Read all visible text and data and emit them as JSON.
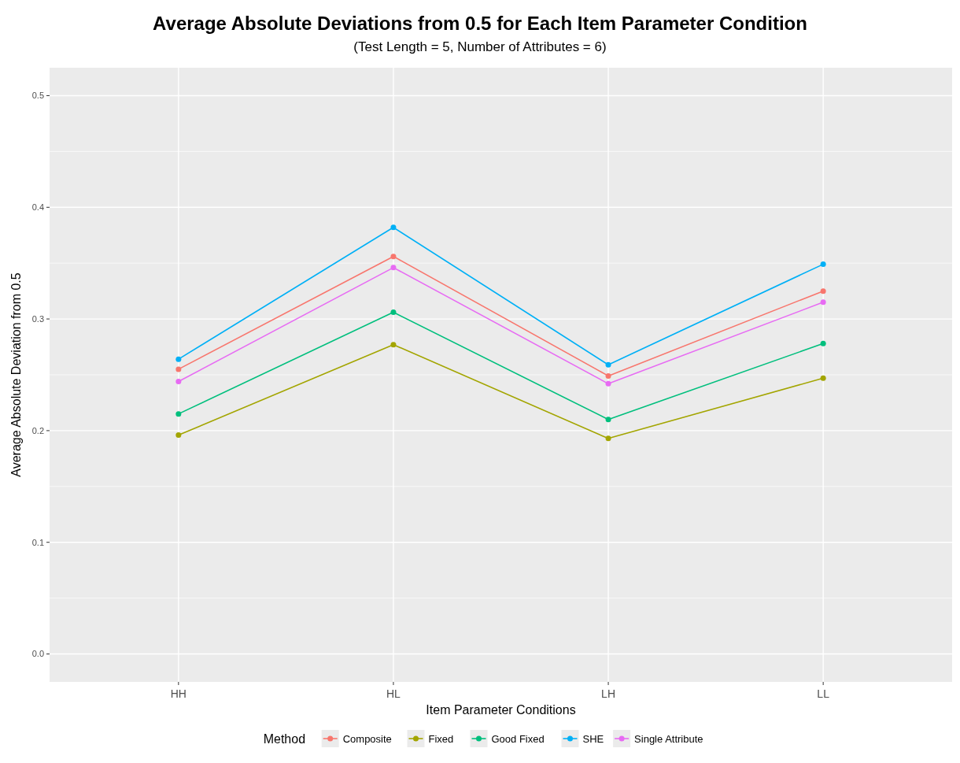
{
  "chart_data": {
    "type": "line",
    "title": "Average Absolute Deviations from 0.5 for Each Item Parameter Condition",
    "subtitle": "(Test Length = 5, Number of Attributes = 6)",
    "xlabel": "Item Parameter Conditions",
    "ylabel": "Average Absolute Deviation from 0.5",
    "legend_title": "Method",
    "categories": [
      "HH",
      "HL",
      "LH",
      "LL"
    ],
    "series": [
      {
        "name": "Composite",
        "color": "#f8766d",
        "values": [
          0.255,
          0.356,
          0.249,
          0.325
        ]
      },
      {
        "name": "Fixed",
        "color": "#a3a500",
        "values": [
          0.196,
          0.277,
          0.193,
          0.247
        ]
      },
      {
        "name": "Good Fixed",
        "color": "#00bf7d",
        "values": [
          0.215,
          0.306,
          0.21,
          0.278
        ]
      },
      {
        "name": "SHE",
        "color": "#00b0f6",
        "values": [
          0.264,
          0.382,
          0.259,
          0.349
        ]
      },
      {
        "name": "Single Attribute",
        "color": "#e76bf3",
        "values": [
          0.244,
          0.346,
          0.242,
          0.315
        ]
      }
    ],
    "ylim": [
      -0.025,
      0.525
    ],
    "yticks": [
      {
        "value": 0,
        "label": "0.0"
      },
      {
        "value": 0.1,
        "label": "0.1"
      },
      {
        "value": 0.2,
        "label": "0.2"
      },
      {
        "value": 0.3,
        "label": "0.3"
      },
      {
        "value": 0.4,
        "label": "0.4"
      },
      {
        "value": 0.5,
        "label": "0.5"
      }
    ],
    "grid": true,
    "legend": "bottom",
    "marker": "circle",
    "line_style": "solid"
  }
}
